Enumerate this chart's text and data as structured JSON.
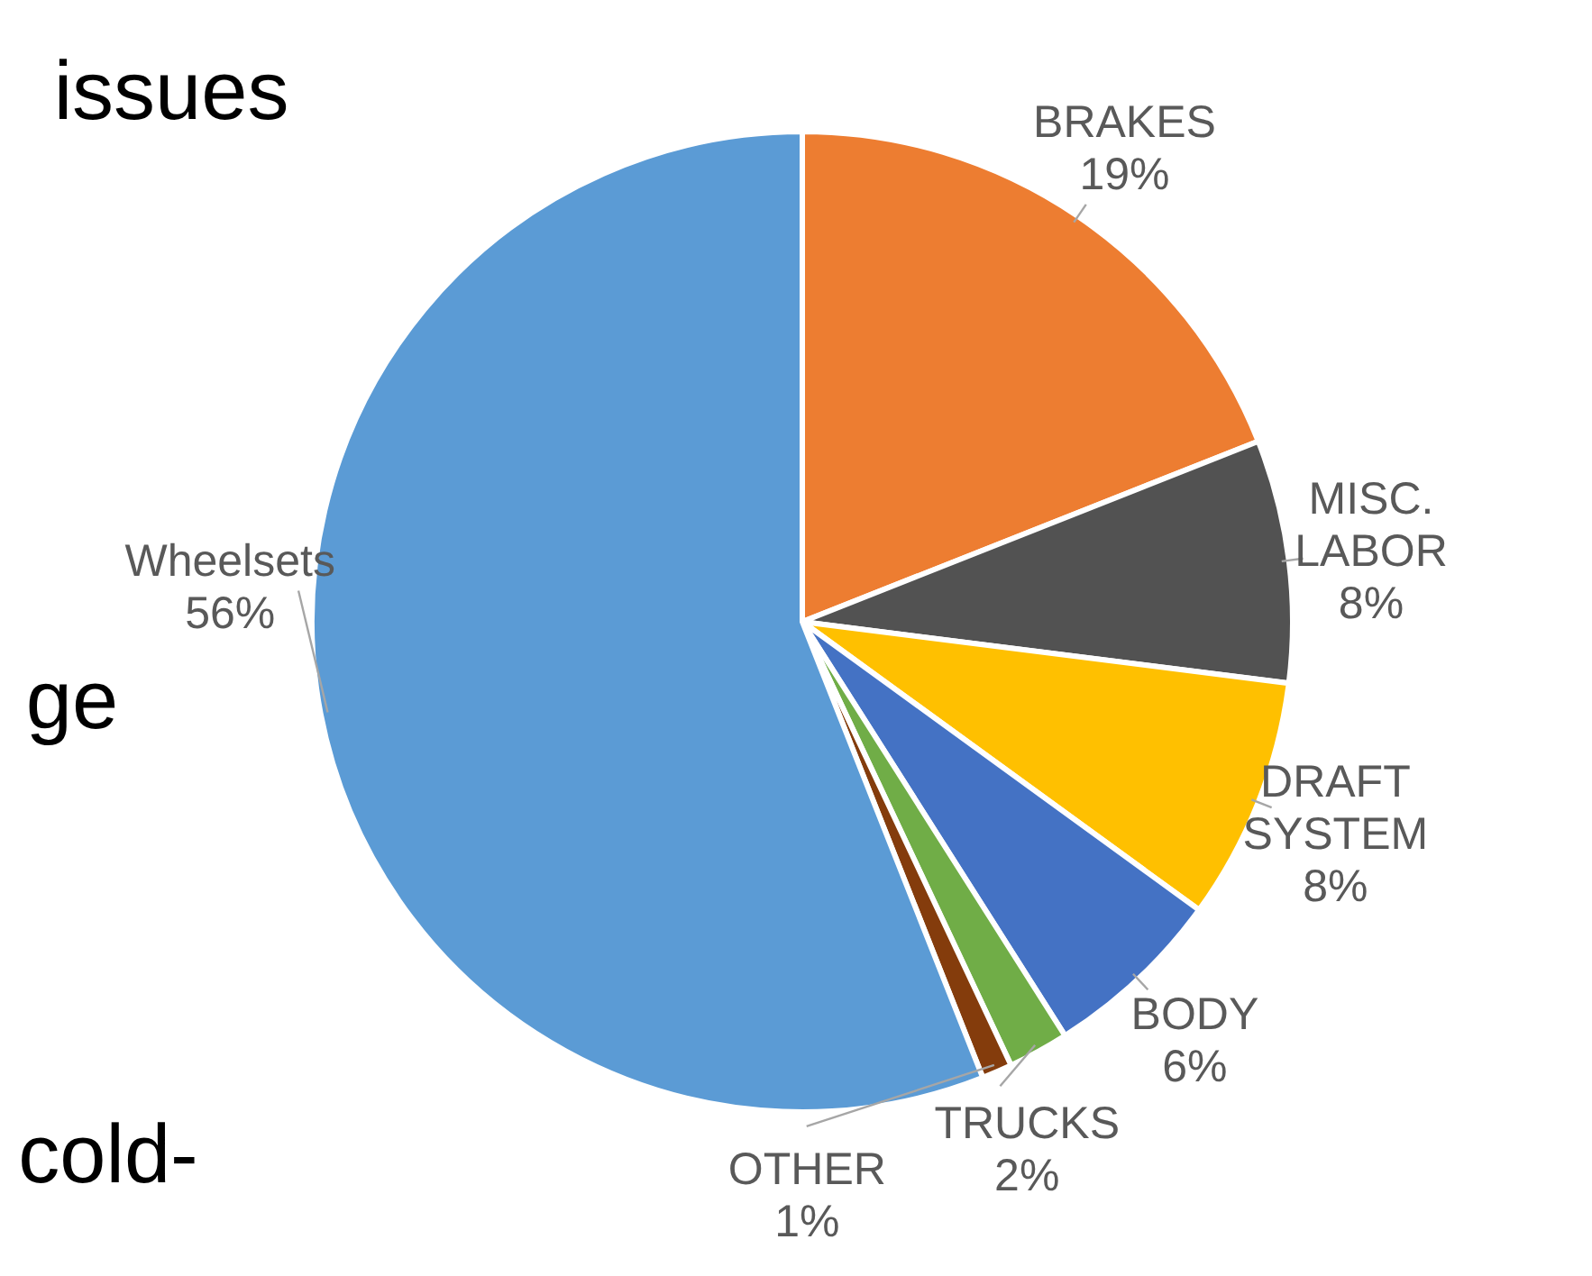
{
  "chart_data": {
    "type": "pie",
    "categories": [
      "BRAKES",
      "MISC. LABOR",
      "DRAFT SYSTEM",
      "BODY",
      "TRUCKS",
      "OTHER",
      "Wheelsets"
    ],
    "values": [
      19,
      8,
      8,
      6,
      2,
      1,
      56
    ],
    "value_labels": [
      "19%",
      "8%",
      "8%",
      "6%",
      "2%",
      "1%",
      "56%"
    ],
    "colors": [
      "#ed7d31",
      "#525252",
      "#ffc000",
      "#4472c4",
      "#70ad47",
      "#843c0c",
      "#5b9bd5"
    ],
    "annotations": [
      "issues",
      "ge",
      "cold-"
    ]
  }
}
